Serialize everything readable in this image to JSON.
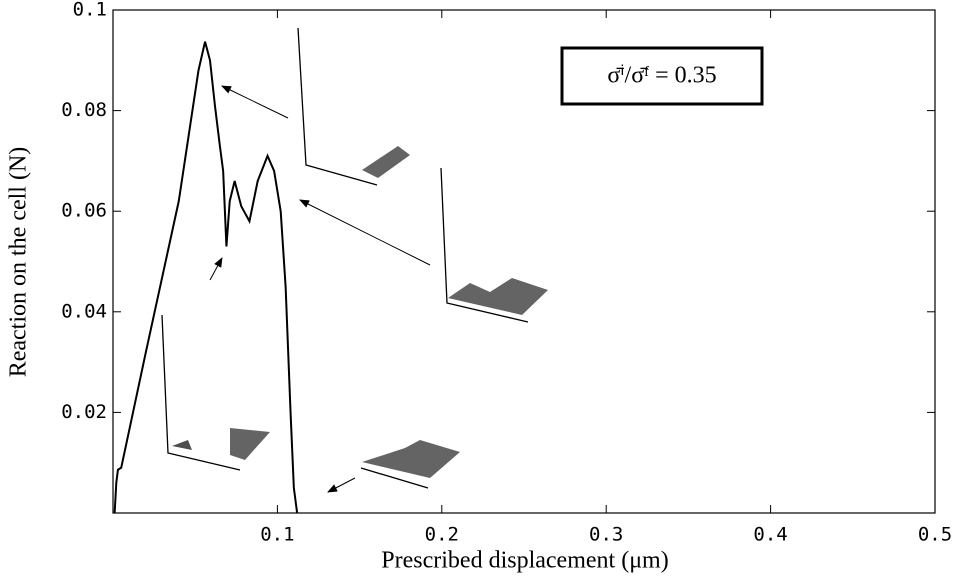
{
  "chart_data": {
    "type": "line",
    "x_label": "Prescribed displacement (μm)",
    "y_label": "Reaction on the cell (N)",
    "annotation": "σ̄ⁱ/σ̄ᶠ = 0.35",
    "x": [
      0.001,
      0.002,
      0.003,
      0.005,
      0.02,
      0.04,
      0.052,
      0.056,
      0.059,
      0.062,
      0.065,
      0.067,
      0.069,
      0.071,
      0.074,
      0.078,
      0.083,
      0.088,
      0.094,
      0.098,
      0.102,
      0.105,
      0.108,
      0.11,
      0.112
    ],
    "series": [
      {
        "color": "#000000",
        "values": [
          0,
          0.006,
          0.0086,
          0.009,
          0.032,
          0.062,
          0.088,
          0.0937,
          0.09,
          0.081,
          0.073,
          0.068,
          0.053,
          0.062,
          0.066,
          0.061,
          0.058,
          0.066,
          0.071,
          0.068,
          0.06,
          0.045,
          0.02,
          0.005,
          0
        ]
      }
    ],
    "xlim": [
      0,
      0.5
    ],
    "ylim": [
      0,
      0.1
    ],
    "xticks": [
      0.1,
      0.2,
      0.3,
      0.4,
      0.5
    ],
    "yticks": [
      0.02,
      0.04,
      0.06,
      0.08,
      0.1
    ]
  }
}
